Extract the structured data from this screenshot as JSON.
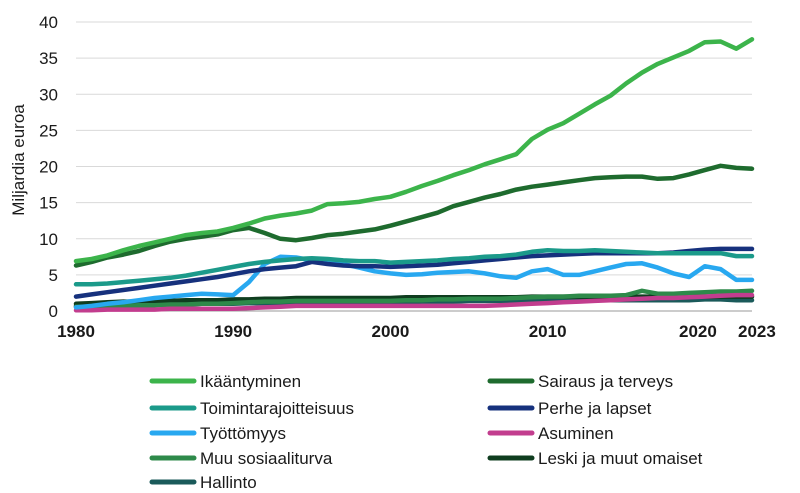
{
  "chart_data": {
    "type": "line",
    "title": "",
    "xlabel": "",
    "ylabel": "Miljardia euroa",
    "xlim": [
      1980,
      2023
    ],
    "ylim": [
      0,
      40
    ],
    "y_ticks": [
      0,
      5,
      10,
      15,
      20,
      25,
      30,
      35,
      40
    ],
    "x_ticks": [
      1980,
      1990,
      2000,
      2010,
      2020,
      2023
    ],
    "grid": "horizontal",
    "legend_position": "bottom",
    "x": [
      1980,
      1981,
      1982,
      1983,
      1984,
      1985,
      1986,
      1987,
      1988,
      1989,
      1990,
      1991,
      1992,
      1993,
      1994,
      1995,
      1996,
      1997,
      1998,
      1999,
      2000,
      2001,
      2002,
      2003,
      2004,
      2005,
      2006,
      2007,
      2008,
      2009,
      2010,
      2011,
      2012,
      2013,
      2014,
      2015,
      2016,
      2017,
      2018,
      2019,
      2020,
      2021,
      2022,
      2023
    ],
    "series": [
      {
        "name": "Ikääntyminen",
        "color": "#3cb44b",
        "values": [
          6.9,
          7.2,
          7.7,
          8.4,
          9.0,
          9.5,
          10.0,
          10.5,
          10.8,
          11.0,
          11.5,
          12.1,
          12.8,
          13.2,
          13.5,
          13.9,
          14.8,
          14.9,
          15.1,
          15.5,
          15.8,
          16.5,
          17.3,
          18.0,
          18.8,
          19.5,
          20.3,
          21.0,
          21.7,
          23.8,
          25.1,
          26.0,
          27.3,
          28.6,
          29.8,
          31.5,
          33.0,
          34.2,
          35.1,
          36.0,
          37.2,
          37.3,
          36.3,
          37.6
        ]
      },
      {
        "name": "Sairaus ja terveys",
        "color": "#1e6b2e",
        "values": [
          6.3,
          6.8,
          7.4,
          7.8,
          8.3,
          9.0,
          9.6,
          10.0,
          10.3,
          10.6,
          11.2,
          11.5,
          10.8,
          10.0,
          9.8,
          10.1,
          10.5,
          10.7,
          11.0,
          11.3,
          11.8,
          12.4,
          13.0,
          13.6,
          14.5,
          15.1,
          15.7,
          16.2,
          16.8,
          17.2,
          17.5,
          17.8,
          18.1,
          18.4,
          18.5,
          18.6,
          18.6,
          18.3,
          18.4,
          18.9,
          19.5,
          20.1,
          19.8,
          19.7
        ]
      },
      {
        "name": "Toimintarajoitteisuus",
        "color": "#1b9a8a",
        "values": [
          3.7,
          3.7,
          3.8,
          4.0,
          4.2,
          4.4,
          4.6,
          4.9,
          5.3,
          5.7,
          6.1,
          6.5,
          6.8,
          7.0,
          7.2,
          7.3,
          7.2,
          7.0,
          6.9,
          6.9,
          6.7,
          6.8,
          6.9,
          7.0,
          7.2,
          7.3,
          7.5,
          7.6,
          7.8,
          8.2,
          8.4,
          8.3,
          8.3,
          8.4,
          8.3,
          8.2,
          8.1,
          8.0,
          8.0,
          8.0,
          8.0,
          8.0,
          7.6,
          7.6
        ]
      },
      {
        "name": "Perhe ja lapset",
        "color": "#16317d",
        "values": [
          2.0,
          2.3,
          2.6,
          2.9,
          3.2,
          3.5,
          3.8,
          4.1,
          4.4,
          4.7,
          5.1,
          5.5,
          5.8,
          6.0,
          6.2,
          6.8,
          6.5,
          6.3,
          6.2,
          6.2,
          6.1,
          6.2,
          6.3,
          6.4,
          6.6,
          6.8,
          7.0,
          7.2,
          7.4,
          7.6,
          7.7,
          7.8,
          7.9,
          8.0,
          8.0,
          8.0,
          8.0,
          8.0,
          8.1,
          8.3,
          8.5,
          8.6,
          8.6,
          8.6
        ]
      },
      {
        "name": "Työttömyys",
        "color": "#28a8f0",
        "values": [
          0.5,
          0.7,
          1.0,
          1.2,
          1.5,
          1.8,
          2.0,
          2.2,
          2.4,
          2.3,
          2.2,
          4.0,
          6.5,
          7.5,
          7.4,
          7.0,
          6.8,
          6.5,
          6.0,
          5.5,
          5.2,
          5.0,
          5.1,
          5.3,
          5.4,
          5.5,
          5.2,
          4.8,
          4.6,
          5.5,
          5.8,
          5.0,
          5.0,
          5.5,
          6.0,
          6.5,
          6.6,
          6.0,
          5.2,
          4.7,
          6.2,
          5.8,
          4.3,
          4.3
        ]
      },
      {
        "name": "Asuminen",
        "color": "#c23d8e",
        "values": [
          0.1,
          0.1,
          0.2,
          0.2,
          0.2,
          0.2,
          0.3,
          0.3,
          0.3,
          0.3,
          0.3,
          0.4,
          0.5,
          0.6,
          0.7,
          0.7,
          0.7,
          0.7,
          0.7,
          0.7,
          0.7,
          0.7,
          0.7,
          0.7,
          0.7,
          0.7,
          0.7,
          0.8,
          0.9,
          1.0,
          1.1,
          1.2,
          1.3,
          1.4,
          1.5,
          1.6,
          1.7,
          1.8,
          1.8,
          1.9,
          2.0,
          2.1,
          2.2,
          2.2
        ]
      },
      {
        "name": "Muu sosiaaliturva",
        "color": "#2e8a4a",
        "values": [
          0.6,
          0.6,
          0.7,
          0.7,
          0.8,
          0.8,
          0.9,
          0.9,
          1.0,
          1.0,
          1.1,
          1.2,
          1.3,
          1.3,
          1.4,
          1.4,
          1.4,
          1.4,
          1.4,
          1.4,
          1.4,
          1.5,
          1.5,
          1.6,
          1.6,
          1.7,
          1.7,
          1.7,
          1.8,
          1.9,
          2.0,
          2.0,
          2.1,
          2.1,
          2.1,
          2.2,
          2.8,
          2.4,
          2.4,
          2.5,
          2.6,
          2.7,
          2.7,
          2.8
        ]
      },
      {
        "name": "Leski ja muut omaiset",
        "color": "#0f3d1f",
        "values": [
          1.0,
          1.1,
          1.2,
          1.3,
          1.3,
          1.4,
          1.4,
          1.5,
          1.5,
          1.5,
          1.6,
          1.6,
          1.7,
          1.7,
          1.8,
          1.8,
          1.8,
          1.8,
          1.8,
          1.8,
          1.8,
          1.9,
          1.9,
          1.9,
          1.9,
          1.9,
          1.9,
          1.9,
          1.9,
          2.0,
          2.0,
          2.0,
          2.0,
          2.0,
          2.0,
          2.0,
          2.0,
          2.0,
          2.0,
          2.0,
          2.0,
          2.0,
          2.0,
          2.0
        ]
      },
      {
        "name": "Hallinto",
        "color": "#1a5a5a",
        "values": [
          0.7,
          0.7,
          0.8,
          0.8,
          0.8,
          0.9,
          0.9,
          0.9,
          1.0,
          1.0,
          1.0,
          1.1,
          1.1,
          1.1,
          1.1,
          1.1,
          1.1,
          1.1,
          1.1,
          1.2,
          1.2,
          1.2,
          1.3,
          1.3,
          1.3,
          1.4,
          1.4,
          1.4,
          1.4,
          1.5,
          1.5,
          1.5,
          1.5,
          1.5,
          1.5,
          1.5,
          1.5,
          1.5,
          1.5,
          1.5,
          1.6,
          1.6,
          1.5,
          1.5
        ]
      }
    ]
  }
}
